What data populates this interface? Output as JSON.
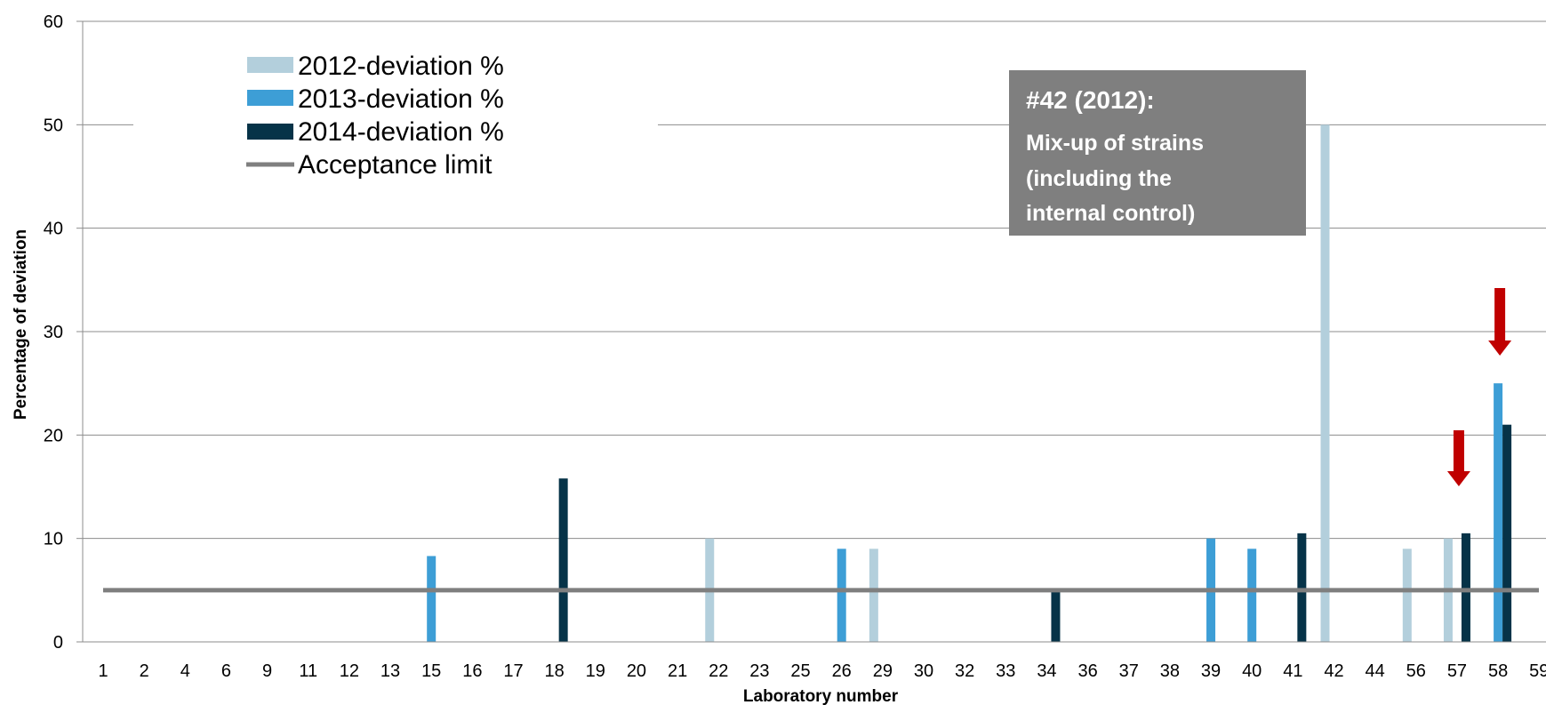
{
  "chart_data": {
    "type": "bar",
    "title": "",
    "xlabel": "Laboratory number",
    "ylabel": "Percentage of deviation",
    "ylim": [
      0,
      60
    ],
    "yticks": [
      0,
      10,
      20,
      30,
      40,
      50,
      60
    ],
    "grid": true,
    "legend_position": "top-left",
    "categories": [
      "1",
      "2",
      "4",
      "6",
      "9",
      "11",
      "12",
      "13",
      "15",
      "16",
      "17",
      "18",
      "19",
      "20",
      "21",
      "22",
      "23",
      "25",
      "26",
      "29",
      "30",
      "32",
      "33",
      "34",
      "36",
      "37",
      "38",
      "39",
      "40",
      "41",
      "42",
      "44",
      "56",
      "57",
      "58",
      "59"
    ],
    "series": [
      {
        "name": "2012-deviation %",
        "color": "#b3cfdc",
        "values": [
          0,
          0,
          0,
          0,
          0,
          0,
          0,
          0,
          0,
          0,
          0,
          0,
          0,
          0,
          0,
          10,
          0,
          0,
          0,
          9,
          0,
          0,
          0,
          0,
          0,
          0,
          0,
          0,
          0,
          0,
          50,
          0,
          9,
          10,
          0,
          0
        ]
      },
      {
        "name": "2013-deviation %",
        "color": "#3d9ed6",
        "values": [
          0,
          0,
          0,
          0,
          0,
          0,
          0,
          0,
          8.3,
          0,
          0,
          0,
          0,
          0,
          0,
          0,
          0,
          0,
          9,
          0,
          0,
          0,
          0,
          0,
          0,
          0,
          0,
          10,
          9,
          0,
          0,
          0,
          0,
          0,
          25,
          0
        ]
      },
      {
        "name": "2014-deviation %",
        "color": "#063348",
        "values": [
          0,
          0,
          0,
          0,
          0,
          0,
          0,
          0,
          0,
          0,
          0,
          15.8,
          0,
          0,
          0,
          0,
          0,
          0,
          0,
          0,
          0,
          0,
          0,
          5,
          0,
          0,
          0,
          0,
          0,
          10.5,
          0,
          0,
          0,
          10.5,
          21,
          0
        ]
      }
    ],
    "reference_line": {
      "name": "Acceptance limit",
      "value": 5,
      "color": "#7f7f7f"
    },
    "annotation": {
      "title": "#42 (2012):",
      "lines": [
        "Mix-up of strains",
        "(including the",
        "internal control)"
      ],
      "background": "#7f7f7f"
    },
    "arrow_markers": [
      {
        "category": "57",
        "color": "#c00000"
      },
      {
        "category": "58",
        "color": "#c00000"
      }
    ]
  }
}
